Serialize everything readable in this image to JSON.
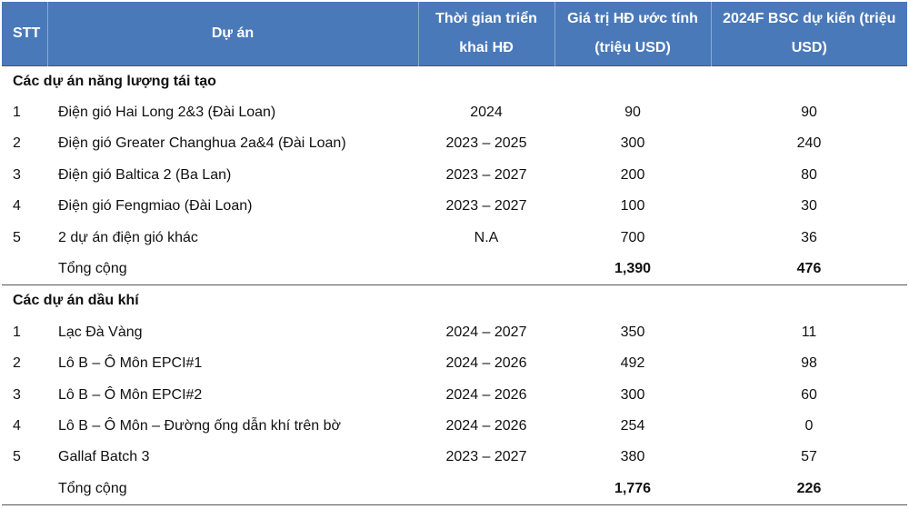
{
  "headers": {
    "stt": "STT",
    "project": "Dự án",
    "time": "Thời gian triển khai HĐ",
    "value": "Giá trị HĐ ước tính (triệu USD)",
    "bsc": "2024F BSC dự kiến (triệu USD)"
  },
  "sections": [
    {
      "title": "Các dự án năng lượng tái tạo",
      "rows": [
        {
          "stt": "1",
          "project": "Điện gió Hai Long 2&3 (Đài Loan)",
          "time": "2024",
          "value": "90",
          "bsc": "90"
        },
        {
          "stt": "2",
          "project": "Điện gió Greater Changhua 2a&4 (Đài Loan)",
          "time": "2023 – 2025",
          "value": "300",
          "bsc": "240"
        },
        {
          "stt": "3",
          "project": "Điện gió Baltica 2 (Ba Lan)",
          "time": "2023 – 2027",
          "value": "200",
          "bsc": "80"
        },
        {
          "stt": "4",
          "project": "Điện gió Fengmiao (Đài Loan)",
          "time": "2023 – 2027",
          "value": "100",
          "bsc": "30"
        },
        {
          "stt": "5",
          "project": "2 dự án điện gió khác",
          "time": "N.A",
          "value": "700",
          "bsc": "36"
        }
      ],
      "total": {
        "label": "Tổng cộng",
        "value": "1,390",
        "bsc": "476"
      }
    },
    {
      "title": "Các dự án dầu khí",
      "rows": [
        {
          "stt": "1",
          "project": "Lạc Đà Vàng",
          "time": "2024 – 2027",
          "value": "350",
          "bsc": "11"
        },
        {
          "stt": "2",
          "project": "Lô B – Ô Môn EPCI#1",
          "time": "2024 – 2026",
          "value": "492",
          "bsc": "98"
        },
        {
          "stt": "3",
          "project": "Lô B – Ô Môn EPCI#2",
          "time": "2024 – 2026",
          "value": "300",
          "bsc": "60"
        },
        {
          "stt": "4",
          "project": "Lô B – Ô Môn – Đường ống dẫn khí trên bờ",
          "time": "2024 – 2026",
          "value": "254",
          "bsc": "0"
        },
        {
          "stt": "5",
          "project": "Gallaf Batch 3",
          "time": "2023 – 2027",
          "value": "380",
          "bsc": "57"
        }
      ],
      "total": {
        "label": "Tổng cộng",
        "value": "1,776",
        "bsc": "226"
      }
    }
  ],
  "colors": {
    "header_bg": "#4a79b9",
    "header_text": "#ffffff"
  }
}
